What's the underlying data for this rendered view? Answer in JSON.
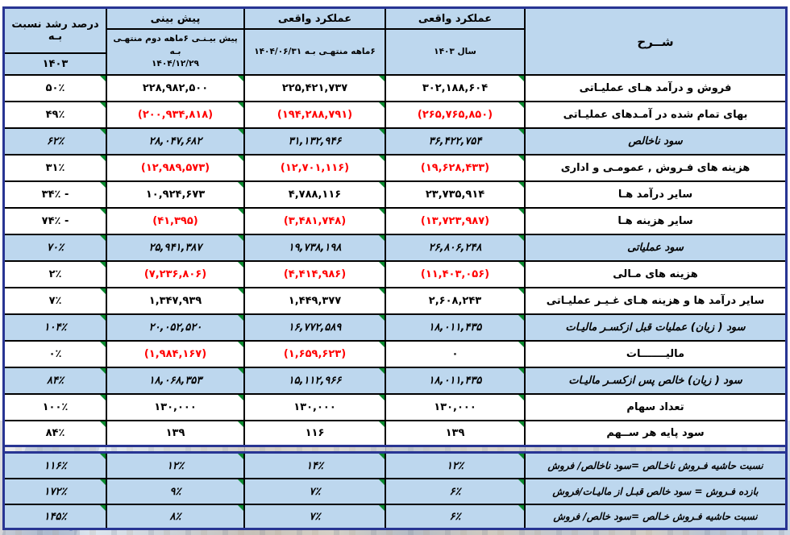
{
  "header": {
    "desc_title": "شــرح",
    "actual_year_title": "عملکرد واقعی",
    "actual_year_subtitle": "سال ۱۴۰۳",
    "actual6_title": "عملکرد واقعی",
    "actual6_subtitle": "۶ماهه منتهـی بـه ۱۴۰۴/۰۶/۳۱",
    "forecast_title": "پیش بینی",
    "forecast_subtitle_line1": "پیش بیـنـی ۶ماهه دوم منتهـی بـه",
    "forecast_subtitle_line2": "۱۴۰۴/۱۲/۲۹",
    "growth_title": "درصد رشد نسبت بـه",
    "growth_year": "۱۴۰۳"
  },
  "rows": [
    {
      "desc": "فروش و درآمد هـای عملیـاتی",
      "year_1403": "۳۰۲,۱۸۸,۶۰۴",
      "actual_6m": "۲۲۵,۴۲۱,۷۳۷",
      "forecast": "۲۲۸,۹۸۲,۵۰۰",
      "growth": "۵۰٪",
      "highlight": false
    },
    {
      "desc": "بهای تمام شده در آمـدهای عملیـاتی",
      "year_1403": "(۲۶۵,۷۶۵,۸۵۰)",
      "actual_6m": "(۱۹۴,۲۸۸,۷۹۱)",
      "forecast": "(۲۰۰,۹۳۴,۸۱۸)",
      "growth": "۴۹٪",
      "highlight": false
    },
    {
      "desc": "سود ناخالص",
      "year_1403": "۳۶,۴۲۲,۷۵۴",
      "actual_6m": "۳۱,۱۳۲,۹۴۶",
      "forecast": "۲۸,۰۴۷,۶۸۲",
      "growth": "۶۲٪",
      "highlight": true
    },
    {
      "desc": "هزینه های فـروش , عمومـی و اداری",
      "year_1403": "(۱۹,۶۲۸,۴۳۳)",
      "actual_6m": "(۱۲,۷۰۱,۱۱۶)",
      "forecast": "(۱۲,۹۸۹,۵۷۳)",
      "growth": "۳۱٪",
      "highlight": false
    },
    {
      "desc": "سایر درآمد هـا",
      "year_1403": "۲۳,۷۳۵,۹۱۴",
      "actual_6m": "۴,۷۸۸,۱۱۶",
      "forecast": "۱۰,۹۲۴,۶۷۳",
      "growth": "۳۴٪ -",
      "highlight": false
    },
    {
      "desc": "سایر هزینه هـا",
      "year_1403": "(۱۳,۷۲۳,۹۸۷)",
      "actual_6m": "(۳,۴۸۱,۷۴۸)",
      "forecast": "(۴۱,۳۹۵)",
      "growth": "۷۴٪ -",
      "highlight": false
    },
    {
      "desc": "سود عملیاتی",
      "year_1403": "۲۶,۸۰۶,۲۴۸",
      "actual_6m": "۱۹,۷۳۸,۱۹۸",
      "forecast": "۲۵,۹۴۱,۳۸۷",
      "growth": "۷۰٪",
      "highlight": true
    },
    {
      "desc": "هزینه های مـالی",
      "year_1403": "(۱۱,۴۰۳,۰۵۶)",
      "actual_6m": "(۴,۴۱۴,۹۸۶)",
      "forecast": "(۷,۲۳۶,۸۰۶)",
      "growth": "۲٪",
      "highlight": false
    },
    {
      "desc": "سایر درآمد ها و هزینه هـای غـیـر عملیـاتی",
      "year_1403": "۲,۶۰۸,۲۴۳",
      "actual_6m": "۱,۴۴۹,۳۷۷",
      "forecast": "۱,۳۴۷,۹۳۹",
      "growth": "۷٪",
      "highlight": false
    },
    {
      "desc": "سود ( زیان) عملیات قبل ازکسـر مالیـات",
      "year_1403": "۱۸,۰۱۱,۴۳۵",
      "actual_6m": "۱۶,۷۷۲,۵۸۹",
      "forecast": "۲۰,۰۵۲,۵۲۰",
      "growth": "۱۰۴٪",
      "highlight": true
    },
    {
      "desc": "مالیـــــــات",
      "year_1403": "۰",
      "actual_6m": "(۱,۶۵۹,۶۲۳)",
      "forecast": "(۱,۹۸۴,۱۶۷)",
      "growth": "۰٪",
      "highlight": false
    },
    {
      "desc": "سود ( زیان) خالص پس ازکسـر مالیـات",
      "year_1403": "۱۸,۰۱۱,۴۳۵",
      "actual_6m": "۱۵,۱۱۲,۹۶۶",
      "forecast": "۱۸,۰۶۸,۳۵۳",
      "growth": "۸۴٪",
      "highlight": true
    },
    {
      "desc": "تعداد سهام",
      "year_1403": "۱۳۰,۰۰۰",
      "actual_6m": "۱۳۰,۰۰۰",
      "forecast": "۱۳۰,۰۰۰",
      "growth": "۱۰۰٪",
      "highlight": false
    },
    {
      "desc": "سود پایه هر ســهم",
      "year_1403": "۱۳۹",
      "actual_6m": "۱۱۶",
      "forecast": "۱۳۹",
      "growth": "۸۴٪",
      "highlight": false
    }
  ],
  "ratio_rows": [
    {
      "desc": "نسبت حاشیه فـروش ناخـالص =سود ناخالص/ فروش",
      "year_1403": "۱۲٪",
      "actual_6m": "۱۴٪",
      "forecast": "۱۲٪",
      "growth": "۱۱۶٪",
      "highlight": true
    },
    {
      "desc": "بازده فـروش = سود خالص قبـل از مالیـات/فروش",
      "year_1403": "۶٪",
      "actual_6m": "۷٪",
      "forecast": "۹٪",
      "growth": "۱۷۲٪",
      "highlight": true
    },
    {
      "desc": "نسبت حاشیه فـروش خـالص =سود خالص/ فروش",
      "year_1403": "۶٪",
      "actual_6m": "۷٪",
      "forecast": "۸٪",
      "growth": "۱۴۵٪",
      "highlight": true
    }
  ],
  "colors": {
    "frame": "#283593",
    "grid": "#000000",
    "header_bg": "#bdd7ee",
    "highlight_bg": "#bdd7ee",
    "negative": "#ff0000",
    "flag_green": "#0c8a30"
  }
}
